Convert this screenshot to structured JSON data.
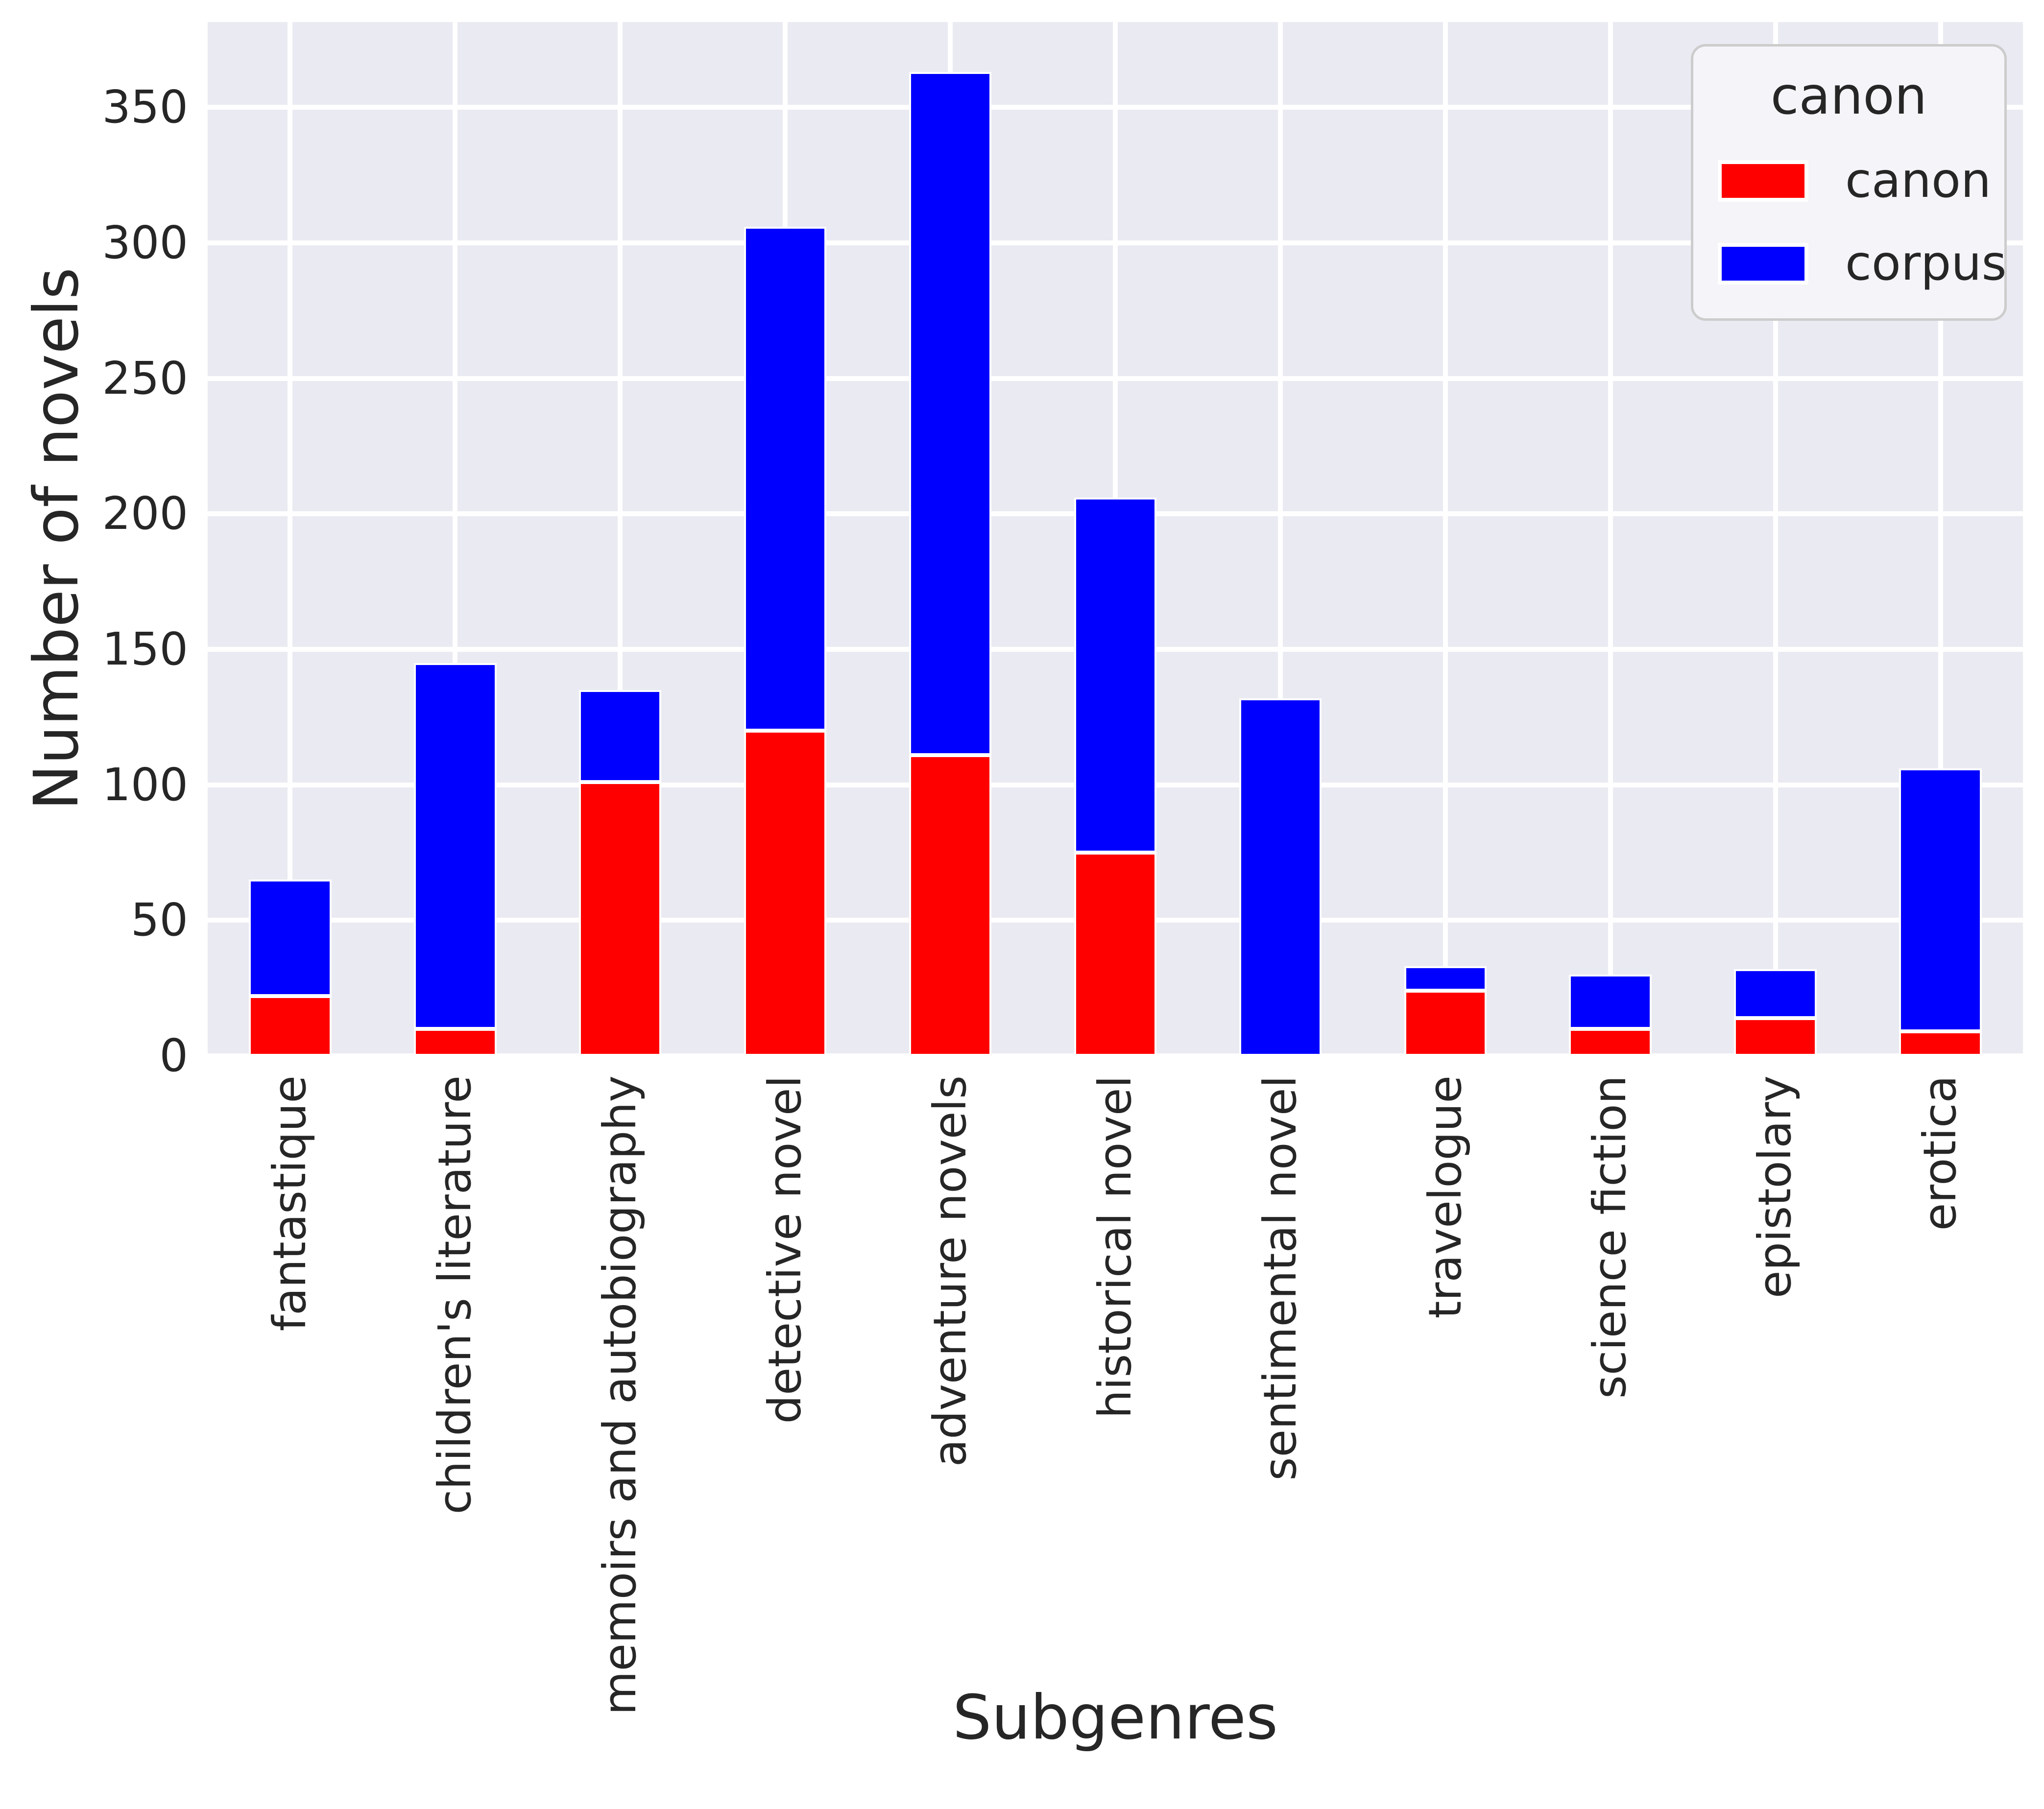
{
  "figure": {
    "background": "#ffffff",
    "plot_background": "#eaeaf2",
    "grid_color": "#ffffff",
    "text_color": "#262626"
  },
  "chart_data": {
    "type": "bar",
    "stacked": true,
    "xlabel": "Subgenres",
    "ylabel": "Number of novels",
    "categories": [
      "fantastique",
      "children's literature",
      "memoirs and autobiography",
      "detective novel",
      "adventure novels",
      "historical novel",
      "sentimental novel",
      "travelogue",
      "science fiction",
      "epistolary",
      "erotica"
    ],
    "series": [
      {
        "name": "canon",
        "color": "#ff0000",
        "values": [
          22,
          10,
          101,
          120,
          111,
          75,
          0,
          24,
          10,
          14,
          9
        ]
      },
      {
        "name": "corpus",
        "color": "#0000ff",
        "values": [
          43,
          135,
          34,
          186,
          252,
          131,
          132,
          9,
          20,
          18,
          97
        ]
      }
    ],
    "totals": [
      65,
      145,
      135,
      306,
      363,
      206,
      132,
      33,
      30,
      32,
      106
    ],
    "ylim": [
      0,
      381.5
    ],
    "yticks": [
      0,
      50,
      100,
      150,
      200,
      250,
      300,
      350
    ],
    "grid": "both",
    "legend": {
      "title": "canon",
      "position": "upper right",
      "entries": [
        "canon",
        "corpus"
      ]
    }
  }
}
